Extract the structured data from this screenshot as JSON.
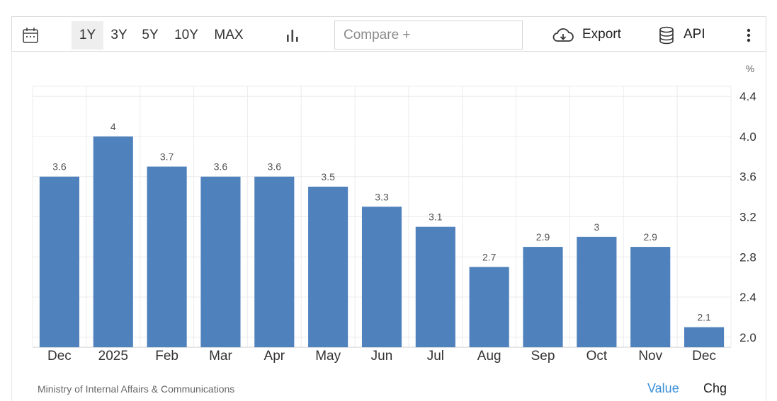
{
  "toolbar": {
    "ranges": [
      "1Y",
      "3Y",
      "5Y",
      "10Y",
      "MAX"
    ],
    "active_range": "1Y",
    "compare_placeholder": "Compare +",
    "export_label": "Export",
    "api_label": "API",
    "icons": {
      "calendar": "calendar-icon",
      "chart_type": "bar-chart-icon",
      "export": "cloud-download-icon",
      "api": "database-icon",
      "more": "more-vertical-icon"
    }
  },
  "footer": {
    "source": "Ministry of Internal Affairs & Communications",
    "tab_value": "Value",
    "tab_chg": "Chg"
  },
  "colors": {
    "bar": "#4f81bd",
    "active_tab": "#3b8fd9"
  },
  "chart_data": {
    "type": "bar",
    "categories": [
      "Dec",
      "2025",
      "Feb",
      "Mar",
      "Apr",
      "May",
      "Jun",
      "Jul",
      "Aug",
      "Sep",
      "Oct",
      "Nov",
      "Dec"
    ],
    "values": [
      3.6,
      4,
      3.7,
      3.6,
      3.6,
      3.5,
      3.3,
      3.1,
      2.7,
      2.9,
      3,
      2.9,
      2.1
    ],
    "value_labels": [
      "3.6",
      "4",
      "3.7",
      "3.6",
      "3.6",
      "3.5",
      "3.3",
      "3.1",
      "2.7",
      "2.9",
      "3",
      "2.9",
      "2.1"
    ],
    "y_unit": "%",
    "y_ticks": [
      "2.0",
      "2.4",
      "2.8",
      "3.2",
      "3.6",
      "4.0",
      "4.4"
    ],
    "ylim": [
      1.9,
      4.5
    ],
    "y_axis_side": "right",
    "grid": true
  }
}
